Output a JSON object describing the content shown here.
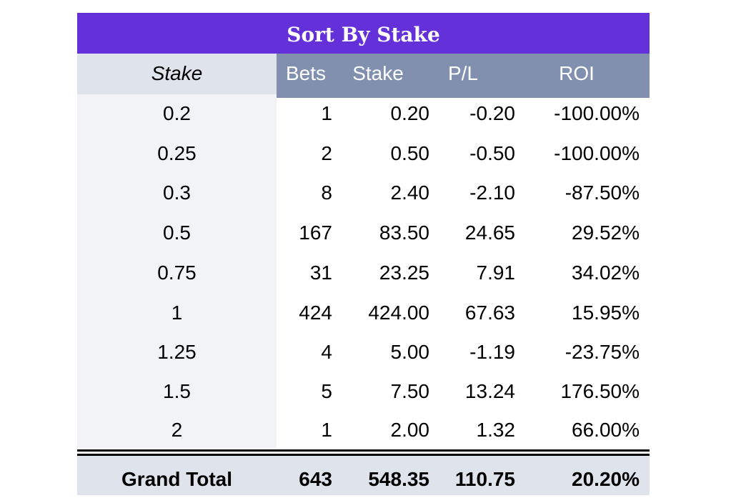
{
  "title": "Sort By Stake",
  "columns": {
    "category": "Stake",
    "bets": "Bets",
    "stake": "Stake",
    "pl": "P/L",
    "roi": "ROI"
  },
  "rows": [
    {
      "stake": "0.2",
      "bets": "1",
      "total_stake": "0.20",
      "pl": "-0.20",
      "roi": "-100.00%"
    },
    {
      "stake": "0.25",
      "bets": "2",
      "total_stake": "0.50",
      "pl": "-0.50",
      "roi": "-100.00%"
    },
    {
      "stake": "0.3",
      "bets": "8",
      "total_stake": "2.40",
      "pl": "-2.10",
      "roi": "-87.50%"
    },
    {
      "stake": "0.5",
      "bets": "167",
      "total_stake": "83.50",
      "pl": "24.65",
      "roi": "29.52%"
    },
    {
      "stake": "0.75",
      "bets": "31",
      "total_stake": "23.25",
      "pl": "7.91",
      "roi": "34.02%"
    },
    {
      "stake": "1",
      "bets": "424",
      "total_stake": "424.00",
      "pl": "67.63",
      "roi": "15.95%"
    },
    {
      "stake": "1.25",
      "bets": "4",
      "total_stake": "5.00",
      "pl": "-1.19",
      "roi": "-23.75%"
    },
    {
      "stake": "1.5",
      "bets": "5",
      "total_stake": "7.50",
      "pl": "13.24",
      "roi": "176.50%"
    },
    {
      "stake": "2",
      "bets": "1",
      "total_stake": "2.00",
      "pl": "1.32",
      "roi": "66.00%"
    }
  ],
  "grand_total": {
    "label": "Grand Total",
    "bets": "643",
    "total_stake": "548.35",
    "pl": "110.75",
    "roi": "20.20%"
  },
  "colors": {
    "title_bg": "#6430d9",
    "header_bg": "#8290b0",
    "header_stake_bg": "#dfe3ec",
    "category_bg": "#f1f3f7",
    "total_bg": "#dfe3ec"
  }
}
